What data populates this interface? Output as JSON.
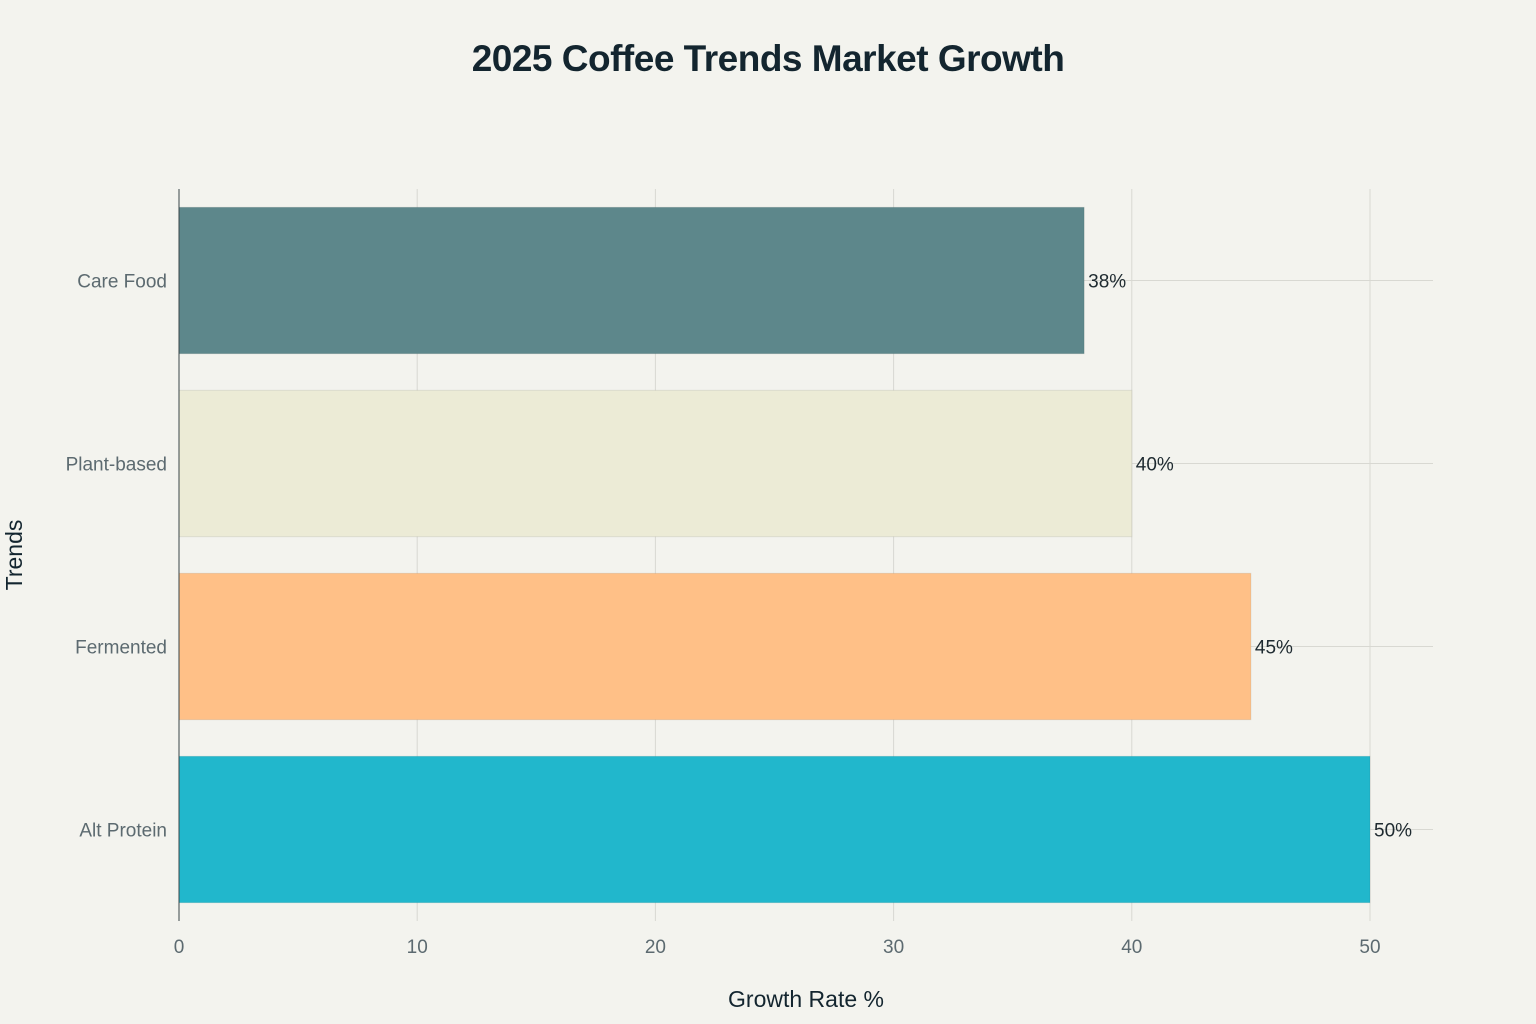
{
  "chart_data": {
    "type": "bar",
    "orientation": "horizontal",
    "title": "2025 Coffee Trends Market Growth",
    "xlabel": "Growth Rate %",
    "ylabel": "Trends",
    "categories": [
      "Care Food",
      "Plant-based",
      "Fermented",
      "Alt Protein"
    ],
    "values": [
      38,
      40,
      45,
      50
    ],
    "data_labels": [
      "38%",
      "40%",
      "45%",
      "50%"
    ],
    "colors": [
      "#5d878b",
      "#ecebd6",
      "#ffc087",
      "#21b7cc"
    ],
    "xlim": [
      0,
      52.7
    ],
    "xticks": [
      0,
      10,
      20,
      30,
      40,
      50
    ],
    "xtick_labels": [
      "0",
      "10",
      "20",
      "30",
      "40",
      "50"
    ],
    "grid": true,
    "legend": "none"
  }
}
